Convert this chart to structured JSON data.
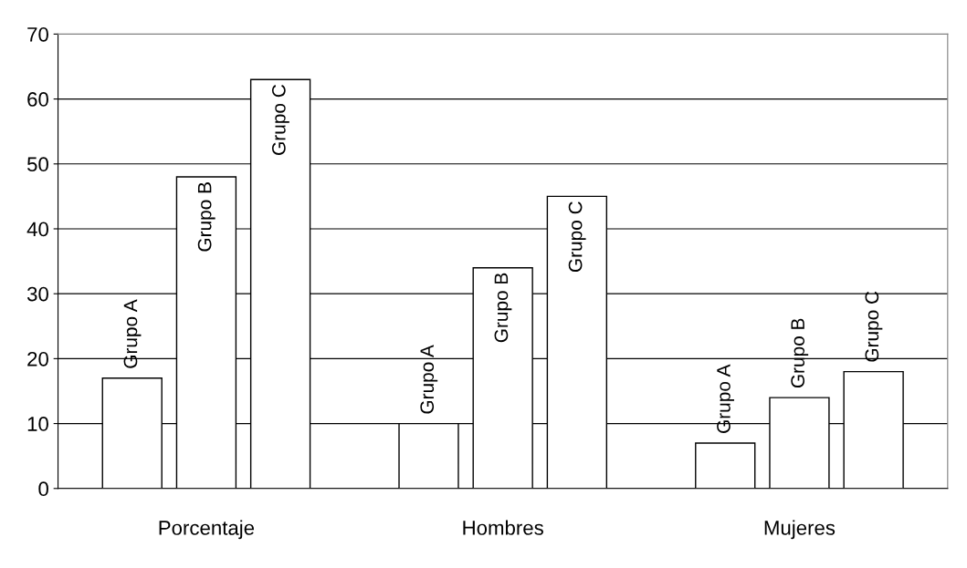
{
  "chart_data": {
    "type": "bar",
    "categories": [
      "Porcentaje",
      "Hombres",
      "Mujeres"
    ],
    "series": [
      {
        "name": "Grupo A",
        "color": "#ffffff",
        "values": [
          17,
          10,
          7
        ]
      },
      {
        "name": "Grupo B",
        "color": "#ffffff",
        "values": [
          48,
          34,
          14
        ]
      },
      {
        "name": "Grupo C",
        "color": "#ffffff",
        "values": [
          63,
          45,
          18
        ]
      }
    ],
    "ylim": [
      0,
      70
    ],
    "yticks": [
      0,
      10,
      20,
      30,
      40,
      50,
      60,
      70
    ],
    "grid": "y"
  }
}
